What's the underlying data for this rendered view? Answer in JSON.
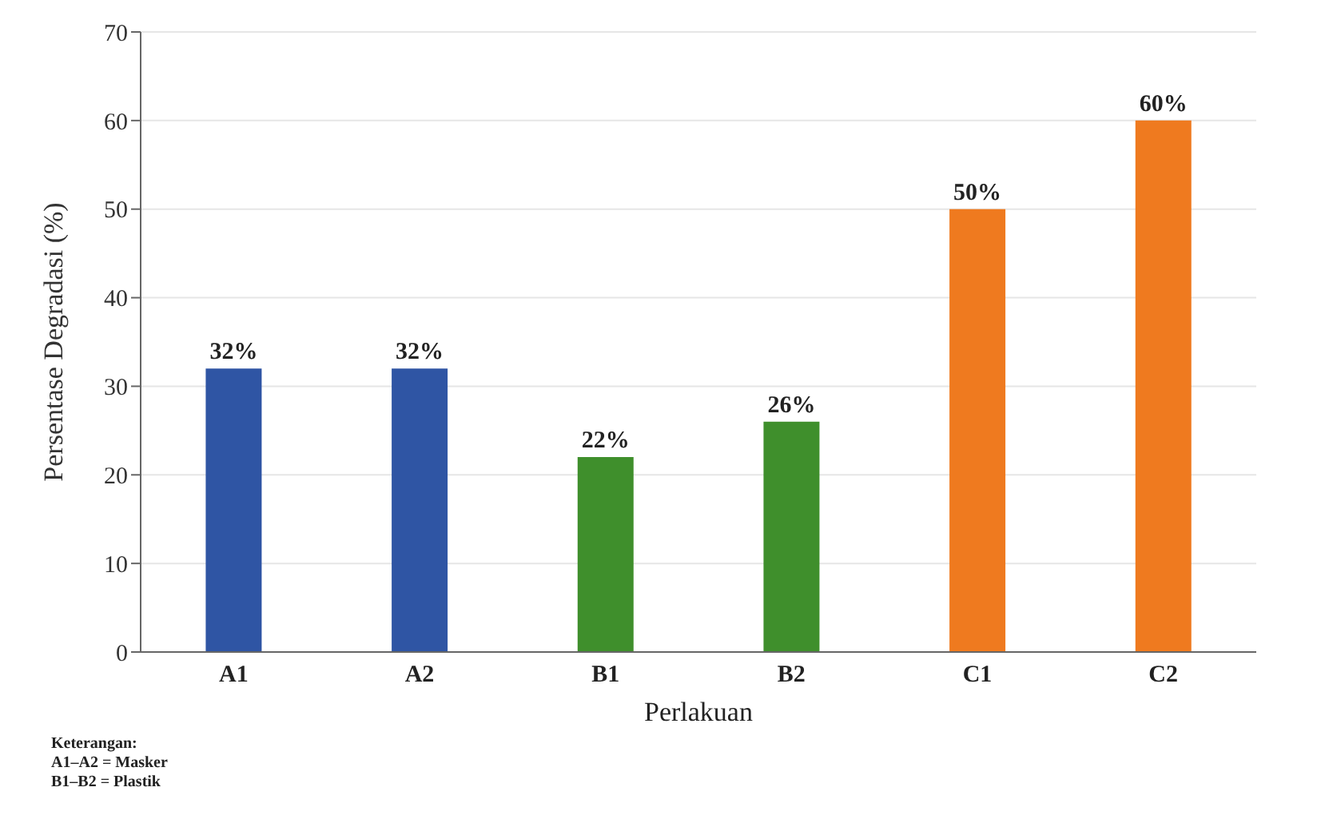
{
  "chart_data": {
    "type": "bar",
    "xlabel": "Perlakuan",
    "ylabel": "Persentase Degradasi (%)",
    "categories": [
      "A1",
      "A2",
      "B1",
      "B2",
      "C1",
      "C2"
    ],
    "values": [
      32,
      32,
      22,
      26,
      50,
      60
    ],
    "colors": [
      "#2f55a4",
      "#2f55a4",
      "#3f8f2c",
      "#3f8f2c",
      "#ef7a1f",
      "#ef7a1f"
    ],
    "value_labels": [
      "32%",
      "32%",
      "22%",
      "26%",
      "50%",
      "60%"
    ],
    "ylim": [
      0,
      70
    ],
    "yticks": [
      0,
      10,
      20,
      30,
      40,
      50,
      60,
      70
    ],
    "grid": "y",
    "annotations": [
      "Keterangan:",
      "A1–A2 = Masker",
      "B1–B2 = Plastik"
    ]
  }
}
